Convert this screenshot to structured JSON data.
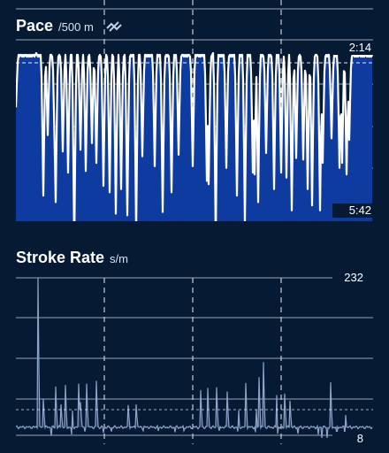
{
  "pace": {
    "title": "Pace",
    "unit": "/500 m",
    "icon": "sync-off-icon",
    "fill_color": "#0e3ba0",
    "line_color": "#ffffff"
  },
  "stroke_rate": {
    "title": "Stroke Rate",
    "unit": "s/m",
    "line_color": "#8fa4c9"
  },
  "chart_data": [
    {
      "type": "area",
      "title": "Pace",
      "ylabel": "/500 m",
      "y_inverted": true,
      "ylim_labels": [
        "2:14",
        "5:42"
      ],
      "ytick_labels": [
        "2:14",
        "5:42"
      ],
      "grid": true,
      "series": [
        {
          "values": [
            16,
            15,
            16,
            15,
            16,
            15,
            15,
            16,
            15,
            16,
            15,
            15,
            16,
            15,
            16,
            15,
            16,
            15,
            16,
            15,
            15,
            16,
            15,
            14,
            15,
            16,
            15,
            16,
            15,
            15,
            16,
            15,
            16,
            15,
            16,
            15,
            16,
            15,
            16,
            15,
            15,
            16,
            15,
            16,
            15,
            16,
            15,
            15,
            16,
            15,
            16,
            15,
            16,
            15,
            16,
            15,
            15,
            16,
            15,
            16,
            15,
            16,
            15,
            15,
            16,
            15,
            16,
            15,
            16,
            15,
            15,
            16,
            15,
            16,
            15,
            16,
            15,
            15,
            16,
            15,
            16,
            15,
            16,
            15,
            15,
            16,
            15,
            16,
            15,
            16,
            15,
            15,
            16,
            15,
            16,
            15,
            16,
            15,
            15,
            16,
            15,
            16,
            15,
            16,
            15,
            15,
            16,
            15,
            16,
            15,
            16,
            15,
            15,
            16,
            15,
            16,
            15,
            16,
            15,
            15,
            16,
            15,
            16,
            15,
            16,
            15,
            15,
            16,
            15,
            16,
            15,
            16,
            15,
            15,
            16,
            15,
            16,
            15,
            16,
            15,
            15,
            16,
            15,
            16,
            15,
            16,
            15,
            15,
            16,
            15,
            16,
            15,
            16,
            15,
            15,
            16,
            15,
            16,
            15,
            16,
            15,
            15,
            16,
            15,
            16,
            15,
            16,
            15,
            15,
            16,
            15,
            16,
            15,
            16,
            15,
            15,
            16,
            15,
            16,
            15,
            16,
            15,
            15,
            16,
            15,
            16,
            15,
            16,
            15,
            15,
            16,
            15,
            16,
            15,
            16,
            15,
            15,
            16,
            15,
            16
          ],
          "dips": [
            [
              0,
              32
            ],
            [
              31,
              86
            ],
            [
              36,
              49
            ],
            [
              44,
              62
            ],
            [
              59,
              72
            ],
            [
              44.5,
              90
            ],
            [
              53,
              59
            ],
            [
              66,
              118
            ],
            [
              73,
              58
            ],
            [
              79,
              71
            ],
            [
              86,
              54
            ],
            [
              91,
              66
            ],
            [
              99,
              80
            ],
            [
              106,
              84
            ],
            [
              113,
              97
            ],
            [
              119,
              82
            ],
            [
              126,
              98
            ],
            [
              136,
              107
            ],
            [
              143,
              62
            ],
            [
              157,
              68
            ],
            [
              166,
              96
            ],
            [
              176,
              84
            ],
            [
              184,
              61
            ],
            [
              200,
              68
            ],
            [
              216,
              77
            ],
            [
              218,
              79
            ],
            [
              226,
              113
            ],
            [
              238,
              69
            ],
            [
              250,
              86
            ],
            [
              259,
              103
            ],
            [
              268,
              72
            ],
            [
              270,
              73
            ],
            [
              274,
              90
            ],
            [
              283,
              60
            ],
            [
              292,
              82
            ],
            [
              300,
              72
            ],
            [
              306,
              75
            ],
            [
              312,
              95
            ],
            [
              317,
              63
            ],
            [
              325,
              64
            ],
            [
              330,
              82
            ],
            [
              335,
              92
            ],
            [
              344,
              95
            ],
            [
              347,
              66
            ],
            [
              357,
              51
            ],
            [
              366,
              69
            ],
            [
              369,
              66
            ],
            [
              374,
              73
            ],
            [
              377,
              52
            ]
          ]
        }
      ]
    },
    {
      "type": "line",
      "title": "Stroke Rate",
      "ylabel": "s/m",
      "ylim": [
        8,
        232
      ],
      "ytick_labels": [
        "232",
        "8"
      ],
      "grid": true,
      "series": [
        {
          "baseline": 23,
          "spikes": [
            [
              25,
              232
            ],
            [
              31,
              63
            ],
            [
              45,
              80
            ],
            [
              51,
              55
            ],
            [
              56,
              82
            ],
            [
              63,
              81
            ],
            [
              71,
              84
            ],
            [
              73,
              58
            ],
            [
              80,
              84
            ],
            [
              91,
              88
            ],
            [
              127,
              54
            ],
            [
              136,
              55
            ],
            [
              209,
              75
            ],
            [
              217,
              78
            ],
            [
              227,
              79
            ],
            [
              239,
              73
            ],
            [
              251,
              82
            ],
            [
              260,
              85
            ],
            [
              271,
              84
            ],
            [
              275,
              93
            ],
            [
              280,
              114
            ],
            [
              295,
              68
            ],
            [
              304,
              70
            ],
            [
              310,
              60
            ],
            [
              356,
              86
            ],
            [
              372,
              66
            ]
          ],
          "drops": [
            [
              40,
              11
            ],
            [
              63,
              13
            ],
            [
              78,
              17
            ],
            [
              99,
              15
            ],
            [
              108,
              17
            ],
            [
              144,
              18
            ],
            [
              161,
              18
            ],
            [
              180,
              16
            ],
            [
              190,
              18
            ],
            [
              230,
              18
            ],
            [
              251,
              17
            ],
            [
              271,
              16
            ],
            [
              296,
              14
            ],
            [
              319,
              14
            ],
            [
              342,
              13
            ],
            [
              346,
              8
            ],
            [
              352,
              8
            ],
            [
              363,
              9
            ],
            [
              372,
              12
            ]
          ]
        }
      ]
    }
  ]
}
